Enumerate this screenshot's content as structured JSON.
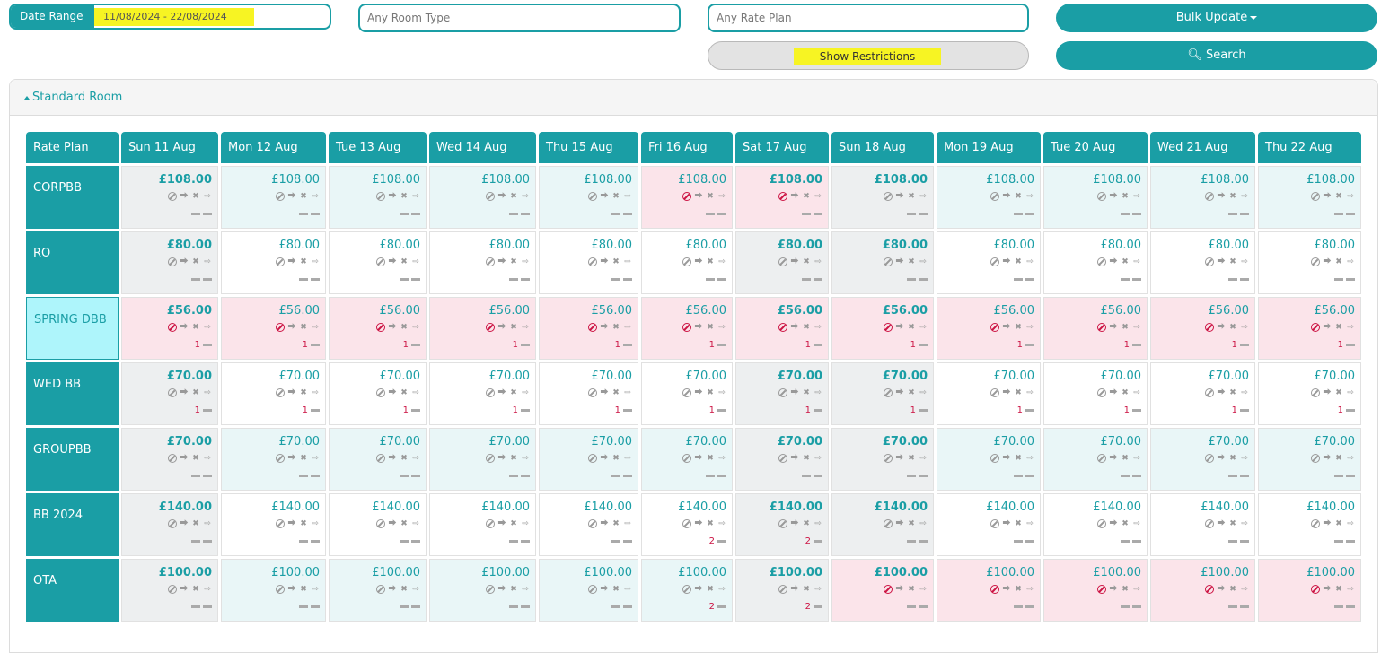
{
  "filters": {
    "date_range_label": "Date Range",
    "date_range_value": "11/08/2024 - 22/08/2024",
    "room_type_placeholder": "Any Room Type",
    "rate_plan_placeholder": "Any Rate Plan",
    "show_restrictions_label": "Show Restrictions",
    "bulk_update_label": "Bulk Update",
    "search_label": "Search"
  },
  "panel": {
    "title": "Standard Room"
  },
  "table": {
    "rate_plan_header": "Rate Plan",
    "dates": [
      "Sun 11 Aug",
      "Mon 12 Aug",
      "Tue 13 Aug",
      "Wed 14 Aug",
      "Thu 15 Aug",
      "Fri 16 Aug",
      "Sat 17 Aug",
      "Sun 18 Aug",
      "Mon 19 Aug",
      "Tue 20 Aug",
      "Wed 21 Aug",
      "Thu 22 Aug"
    ],
    "weekend_bold": [
      true,
      false,
      false,
      false,
      false,
      false,
      true,
      true,
      false,
      false,
      false,
      false
    ],
    "rows": [
      {
        "name": "CORPBB",
        "price": "£108.00",
        "bg": [
          "grey",
          "light",
          "light",
          "light",
          "light",
          "pink",
          "pink",
          "grey",
          "light",
          "light",
          "light",
          "light"
        ],
        "stop": [
          false,
          false,
          false,
          false,
          false,
          true,
          true,
          false,
          false,
          false,
          false,
          false
        ],
        "min": [
          "",
          "",
          "",
          "",
          "",
          "",
          "",
          "",
          "",
          "",
          "",
          ""
        ]
      },
      {
        "name": "RO",
        "price": "£80.00",
        "bg": [
          "grey",
          "white",
          "white",
          "white",
          "white",
          "white",
          "grey",
          "grey",
          "white",
          "white",
          "white",
          "white"
        ],
        "stop": [
          false,
          false,
          false,
          false,
          false,
          false,
          false,
          false,
          false,
          false,
          false,
          false
        ],
        "min": [
          "",
          "",
          "",
          "",
          "",
          "",
          "",
          "",
          "",
          "",
          "",
          ""
        ]
      },
      {
        "name": "SPRING DBB",
        "price": "£56.00",
        "selected": true,
        "bg": [
          "pink",
          "pink",
          "pink",
          "pink",
          "pink",
          "pink",
          "pink",
          "pink",
          "pink",
          "pink",
          "pink",
          "pink"
        ],
        "stop": [
          true,
          true,
          true,
          true,
          true,
          true,
          true,
          true,
          true,
          true,
          true,
          true
        ],
        "min": [
          "1",
          "1",
          "1",
          "1",
          "1",
          "1",
          "1",
          "1",
          "1",
          "1",
          "1",
          "1"
        ]
      },
      {
        "name": "WED BB",
        "price": "£70.00",
        "bg": [
          "grey",
          "white",
          "white",
          "white",
          "white",
          "white",
          "grey",
          "grey",
          "white",
          "white",
          "white",
          "white"
        ],
        "stop": [
          false,
          false,
          false,
          false,
          false,
          false,
          false,
          false,
          false,
          false,
          false,
          false
        ],
        "min": [
          "1",
          "1",
          "1",
          "1",
          "1",
          "1",
          "1",
          "1",
          "1",
          "1",
          "1",
          "1"
        ]
      },
      {
        "name": "GROUPBB",
        "price": "£70.00",
        "bg": [
          "grey",
          "light",
          "light",
          "light",
          "light",
          "light",
          "grey",
          "grey",
          "light",
          "light",
          "light",
          "light"
        ],
        "stop": [
          false,
          false,
          false,
          false,
          false,
          false,
          false,
          false,
          false,
          false,
          false,
          false
        ],
        "min": [
          "",
          "",
          "",
          "",
          "",
          "",
          "",
          "",
          "",
          "",
          "",
          ""
        ]
      },
      {
        "name": "BB 2024",
        "price": "£140.00",
        "bg": [
          "grey",
          "white",
          "white",
          "white",
          "white",
          "white",
          "grey",
          "grey",
          "white",
          "white",
          "white",
          "white"
        ],
        "stop": [
          false,
          false,
          false,
          false,
          false,
          false,
          false,
          false,
          false,
          false,
          false,
          false
        ],
        "min": [
          "",
          "",
          "",
          "",
          "",
          "2",
          "2",
          "",
          "",
          "",
          "",
          ""
        ]
      },
      {
        "name": "OTA",
        "price": "£100.00",
        "bg": [
          "grey",
          "light",
          "light",
          "light",
          "light",
          "light",
          "grey",
          "pink",
          "pink",
          "pink",
          "pink",
          "pink"
        ],
        "stop": [
          false,
          false,
          false,
          false,
          false,
          false,
          false,
          true,
          true,
          true,
          true,
          true
        ],
        "min": [
          "",
          "",
          "",
          "",
          "",
          "2",
          "2",
          "",
          "",
          "",
          "",
          ""
        ]
      }
    ]
  },
  "colors": {
    "teal": "#1a9ea5",
    "grey": "#edeff0",
    "light": "#e9f6f7",
    "pink": "#fbe4ea",
    "white": "#ffffff",
    "stop_red": "#cc1444"
  }
}
